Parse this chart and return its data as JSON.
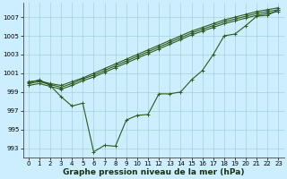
{
  "background_color": "#cceeff",
  "grid_color": "#99cccc",
  "line_color": "#2d5a1b",
  "xlim": [
    -0.5,
    23.5
  ],
  "ylim": [
    992,
    1008.5
  ],
  "yticks": [
    993,
    995,
    997,
    999,
    1001,
    1003,
    1005,
    1007
  ],
  "xticks": [
    0,
    1,
    2,
    3,
    4,
    5,
    6,
    7,
    8,
    9,
    10,
    11,
    12,
    13,
    14,
    15,
    16,
    17,
    18,
    19,
    20,
    21,
    22,
    23
  ],
  "xlabel": "Graphe pression niveau de la mer (hPa)",
  "series_zigzag": [
    1000.0,
    1000.3,
    999.7,
    998.5,
    997.5,
    997.8,
    992.6,
    993.3,
    993.2,
    996.0,
    996.5,
    996.6,
    998.8,
    998.8,
    999.0,
    1000.3,
    1001.3,
    1003.0,
    1005.0,
    1005.2,
    1006.1,
    1007.1,
    1007.2,
    1007.8
  ],
  "series_line1": [
    1000.1,
    1000.2,
    999.9,
    999.7,
    1000.1,
    1000.5,
    1001.0,
    1001.5,
    1002.0,
    1002.5,
    1003.0,
    1003.5,
    1004.0,
    1004.5,
    1005.0,
    1005.5,
    1005.9,
    1006.3,
    1006.7,
    1007.0,
    1007.3,
    1007.6,
    1007.8,
    1008.0
  ],
  "series_line2": [
    999.9,
    1000.1,
    999.8,
    999.5,
    999.9,
    1000.4,
    1000.8,
    1001.3,
    1001.8,
    1002.3,
    1002.8,
    1003.3,
    1003.8,
    1004.3,
    1004.8,
    1005.3,
    1005.7,
    1006.1,
    1006.5,
    1006.8,
    1007.1,
    1007.4,
    1007.6,
    1007.8
  ],
  "series_line3": [
    999.7,
    999.9,
    999.6,
    999.3,
    999.7,
    1000.2,
    1000.6,
    1001.1,
    1001.6,
    1002.1,
    1002.6,
    1003.1,
    1003.6,
    1004.1,
    1004.6,
    1005.1,
    1005.5,
    1005.9,
    1006.3,
    1006.6,
    1006.9,
    1007.2,
    1007.4,
    1007.6
  ],
  "markersize": 3,
  "linewidth": 0.8,
  "xlabel_fontsize": 6.5,
  "tick_fontsize": 5.0
}
